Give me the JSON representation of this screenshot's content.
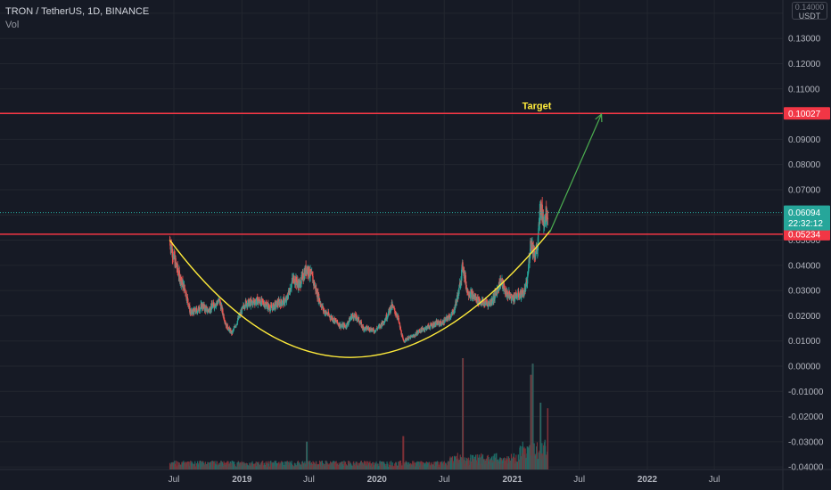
{
  "header": {
    "title": "TRON / TetherUS, 1D, BINANCE",
    "volume_label": "Vol"
  },
  "price_axis": {
    "currency": "USDT",
    "ticks": [
      "0.14000",
      "0.13000",
      "0.12000",
      "0.11000",
      "0.10000",
      "0.09000",
      "0.08000",
      "0.07000",
      "0.06000",
      "0.05000",
      "0.04000",
      "0.03000",
      "0.02000",
      "0.01000",
      "0.00000",
      "-0.01000",
      "-0.02000",
      "-0.03000",
      "-0.04000"
    ]
  },
  "time_axis": {
    "ticks": [
      "Jul",
      "2019",
      "Jul",
      "2020",
      "Jul",
      "2021",
      "Jul",
      "2022",
      "Jul"
    ]
  },
  "chart_data": {
    "type": "candlestick",
    "symbol": "TRON / TetherUS",
    "interval": "1D",
    "exchange": "BINANCE",
    "y_range": [
      -0.041,
      0.1435
    ],
    "price_series": [
      [
        "2018-06-20",
        0.05
      ],
      [
        "2018-07-01",
        0.043
      ],
      [
        "2018-07-15",
        0.036
      ],
      [
        "2018-08-01",
        0.03
      ],
      [
        "2018-08-15",
        0.021
      ],
      [
        "2018-09-01",
        0.022
      ],
      [
        "2018-09-15",
        0.024
      ],
      [
        "2018-10-01",
        0.022
      ],
      [
        "2018-10-15",
        0.024
      ],
      [
        "2018-11-01",
        0.026
      ],
      [
        "2018-11-20",
        0.016
      ],
      [
        "2018-12-05",
        0.013
      ],
      [
        "2018-12-20",
        0.018
      ],
      [
        "2019-01-10",
        0.025
      ],
      [
        "2019-01-25",
        0.025
      ],
      [
        "2019-02-10",
        0.026
      ],
      [
        "2019-03-01",
        0.025
      ],
      [
        "2019-03-20",
        0.023
      ],
      [
        "2019-04-10",
        0.025
      ],
      [
        "2019-05-01",
        0.026
      ],
      [
        "2019-05-20",
        0.035
      ],
      [
        "2019-06-05",
        0.032
      ],
      [
        "2019-06-25",
        0.039
      ],
      [
        "2019-07-10",
        0.035
      ],
      [
        "2019-07-25",
        0.028
      ],
      [
        "2019-08-10",
        0.022
      ],
      [
        "2019-08-25",
        0.02
      ],
      [
        "2019-09-10",
        0.018
      ],
      [
        "2019-09-25",
        0.016
      ],
      [
        "2019-10-10",
        0.016
      ],
      [
        "2019-10-25",
        0.02
      ],
      [
        "2019-11-10",
        0.019
      ],
      [
        "2019-11-25",
        0.015
      ],
      [
        "2019-12-10",
        0.015
      ],
      [
        "2019-12-25",
        0.014
      ],
      [
        "2020-01-10",
        0.016
      ],
      [
        "2020-01-25",
        0.019
      ],
      [
        "2020-02-10",
        0.024
      ],
      [
        "2020-02-25",
        0.02
      ],
      [
        "2020-03-12",
        0.01
      ],
      [
        "2020-03-25",
        0.011
      ],
      [
        "2020-04-10",
        0.012
      ],
      [
        "2020-04-25",
        0.014
      ],
      [
        "2020-05-10",
        0.015
      ],
      [
        "2020-05-25",
        0.016
      ],
      [
        "2020-06-10",
        0.017
      ],
      [
        "2020-06-25",
        0.017
      ],
      [
        "2020-07-10",
        0.019
      ],
      [
        "2020-07-25",
        0.021
      ],
      [
        "2020-08-10",
        0.03
      ],
      [
        "2020-08-20",
        0.04
      ],
      [
        "2020-09-01",
        0.03
      ],
      [
        "2020-09-15",
        0.028
      ],
      [
        "2020-10-01",
        0.026
      ],
      [
        "2020-10-15",
        0.025
      ],
      [
        "2020-11-01",
        0.025
      ],
      [
        "2020-11-15",
        0.028
      ],
      [
        "2020-12-01",
        0.034
      ],
      [
        "2020-12-15",
        0.029
      ],
      [
        "2021-01-01",
        0.027
      ],
      [
        "2021-01-15",
        0.028
      ],
      [
        "2021-02-01",
        0.029
      ],
      [
        "2021-02-10",
        0.033
      ],
      [
        "2021-02-20",
        0.05
      ],
      [
        "2021-03-01",
        0.045
      ],
      [
        "2021-03-10",
        0.046
      ],
      [
        "2021-03-18",
        0.064
      ],
      [
        "2021-03-25",
        0.058
      ],
      [
        "2021-04-01",
        0.06
      ],
      [
        "2021-04-07",
        0.06094
      ]
    ],
    "last_price": 0.06094,
    "countdown": "22:32:12",
    "horizontal_levels": [
      {
        "value": 0.10027,
        "label": "0.10027",
        "color": "#f23645"
      },
      {
        "value": 0.05234,
        "label": "0.05234",
        "color": "#f23645"
      }
    ],
    "annotations": {
      "target_text": "Target",
      "target_color": "#ffeb3b",
      "arrow_color": "#4caf50",
      "arrow_from": [
        "2021-04-12",
        0.053
      ],
      "arrow_to": [
        "2021-08-30",
        0.1
      ],
      "cup_curve_color": "#ffeb3b",
      "cup_curve": [
        [
          "2018-06-20",
          0.05
        ],
        [
          "2019-11-01",
          0.0035
        ],
        [
          "2021-04-15",
          0.054
        ]
      ]
    },
    "volume_series_note": "spikes",
    "volume_spikes": [
      [
        "2020-08-20",
        1.0
      ],
      [
        "2021-02-20",
        0.85
      ],
      [
        "2021-02-25",
        0.95
      ],
      [
        "2021-03-18",
        0.6
      ],
      [
        "2019-06-25",
        0.25
      ],
      [
        "2020-03-12",
        0.3
      ],
      [
        "2021-04-07",
        0.55
      ]
    ],
    "colors": {
      "background": "#161a25",
      "grid": "#22262f",
      "up": "#26a69a",
      "down": "#ef5350",
      "volume_up": "#1e6b66",
      "volume_down": "#7e3037",
      "last_price_line": "#26a69a"
    }
  }
}
